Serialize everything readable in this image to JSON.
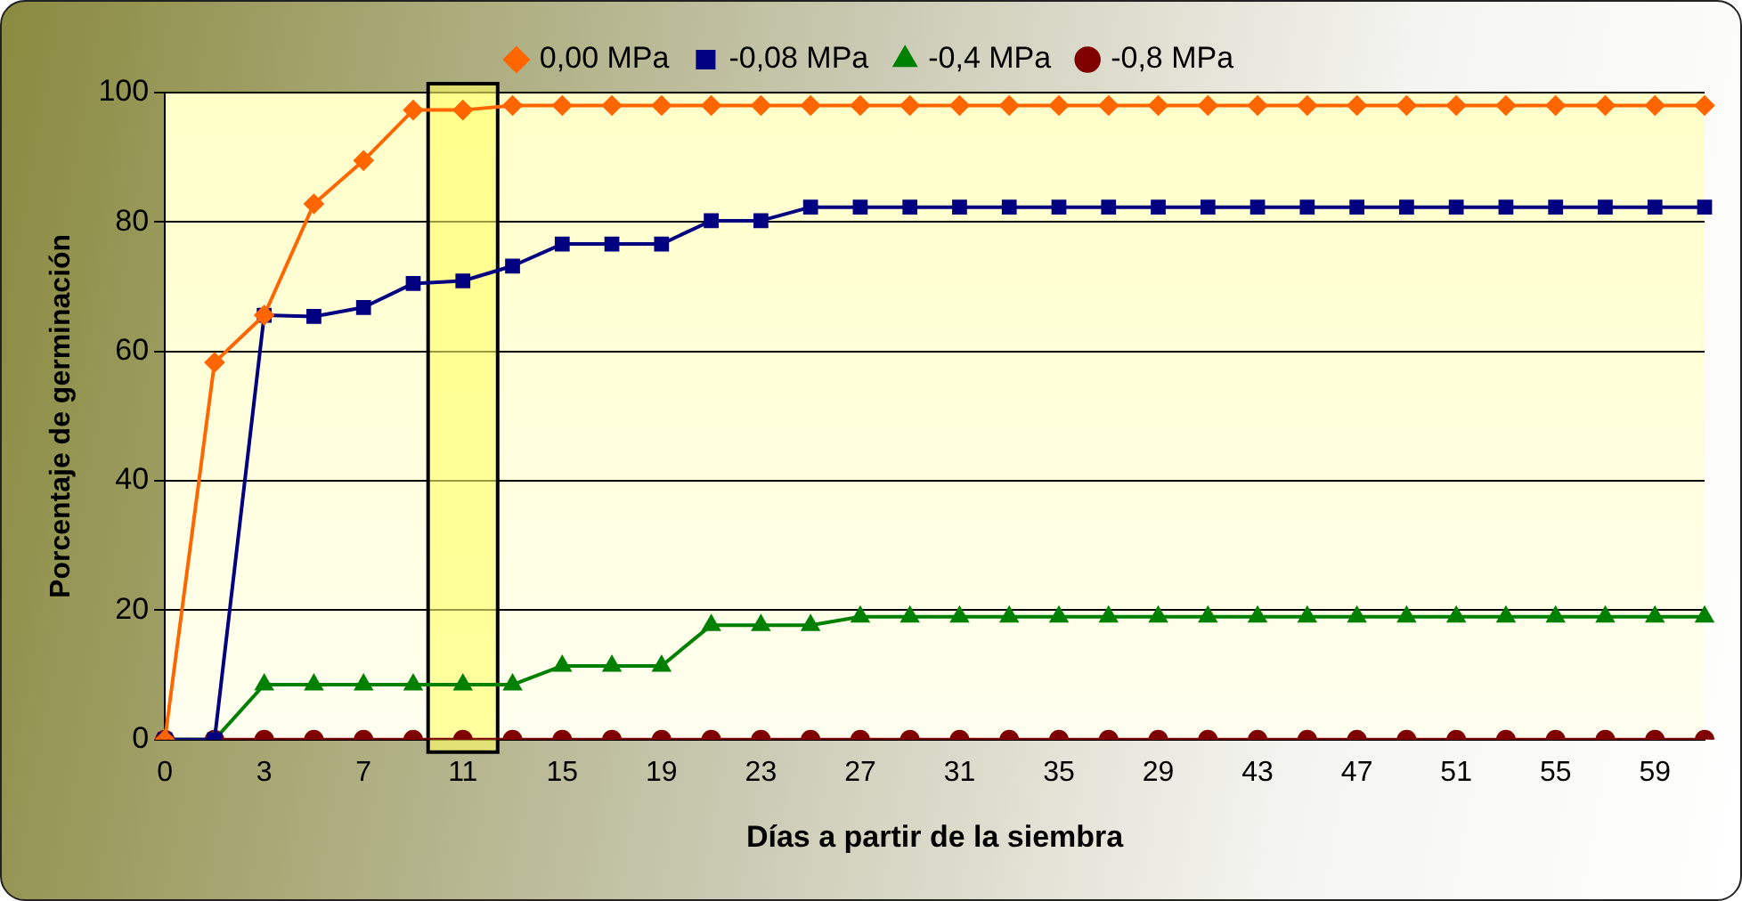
{
  "chart_data": {
    "type": "line",
    "xlabel": "Días a partir de la siembra",
    "ylabel": "Porcentaje de germinación",
    "categories": [
      "0",
      null,
      "3",
      null,
      "7",
      null,
      "11",
      null,
      "15",
      null,
      "19",
      null,
      "23",
      null,
      "27",
      null,
      "31",
      null,
      "35",
      null,
      "29",
      null,
      "43",
      null,
      "47",
      null,
      "51",
      null,
      "55",
      null,
      "59",
      null
    ],
    "series": [
      {
        "name": "0,00 MPa",
        "color": "#ff6600",
        "marker": "diamond",
        "values": [
          0,
          58.3,
          65.6,
          82.8,
          89.5,
          97.3,
          97.3,
          98,
          98,
          98,
          98,
          98,
          98,
          98,
          98,
          98,
          98,
          98,
          98,
          98,
          98,
          98,
          98,
          98,
          98,
          98,
          98,
          98,
          98,
          98,
          98,
          98
        ]
      },
      {
        "name": "-0,08 MPa",
        "color": "#000080",
        "marker": "square",
        "values": [
          0,
          0,
          65.6,
          65.4,
          66.8,
          70.5,
          70.9,
          73.2,
          76.6,
          76.6,
          76.6,
          80.2,
          80.2,
          82.3,
          82.3,
          82.3,
          82.3,
          82.3,
          82.3,
          82.3,
          82.3,
          82.3,
          82.3,
          82.3,
          82.3,
          82.3,
          82.3,
          82.3,
          82.3,
          82.3,
          82.3,
          82.3
        ]
      },
      {
        "name": "-0,4 MPa",
        "color": "#008000",
        "marker": "triangle",
        "values": [
          0,
          0,
          8.5,
          8.5,
          8.5,
          8.5,
          8.5,
          8.5,
          11.4,
          11.4,
          11.4,
          17.7,
          17.7,
          17.7,
          19,
          19,
          19,
          19,
          19,
          19,
          19,
          19,
          19,
          19,
          19,
          19,
          19,
          19,
          19,
          19,
          19,
          19
        ]
      },
      {
        "name": "-0,8 MPa",
        "color": "#800000",
        "marker": "circle",
        "values": [
          0,
          0,
          0,
          0,
          0,
          0,
          0,
          0,
          0,
          0,
          0,
          0,
          0,
          0,
          0,
          0,
          0,
          0,
          0,
          0,
          0,
          0,
          0,
          0,
          0,
          0,
          0,
          0,
          0,
          0,
          0,
          0
        ]
      }
    ],
    "ylim": [
      0,
      100
    ],
    "yticks": [
      0,
      20,
      40,
      60,
      80,
      100
    ],
    "grid": "y",
    "legend": "top",
    "bands": [
      {
        "axis": "x",
        "from": "11",
        "to": "11",
        "color": "#ffff66"
      }
    ]
  }
}
